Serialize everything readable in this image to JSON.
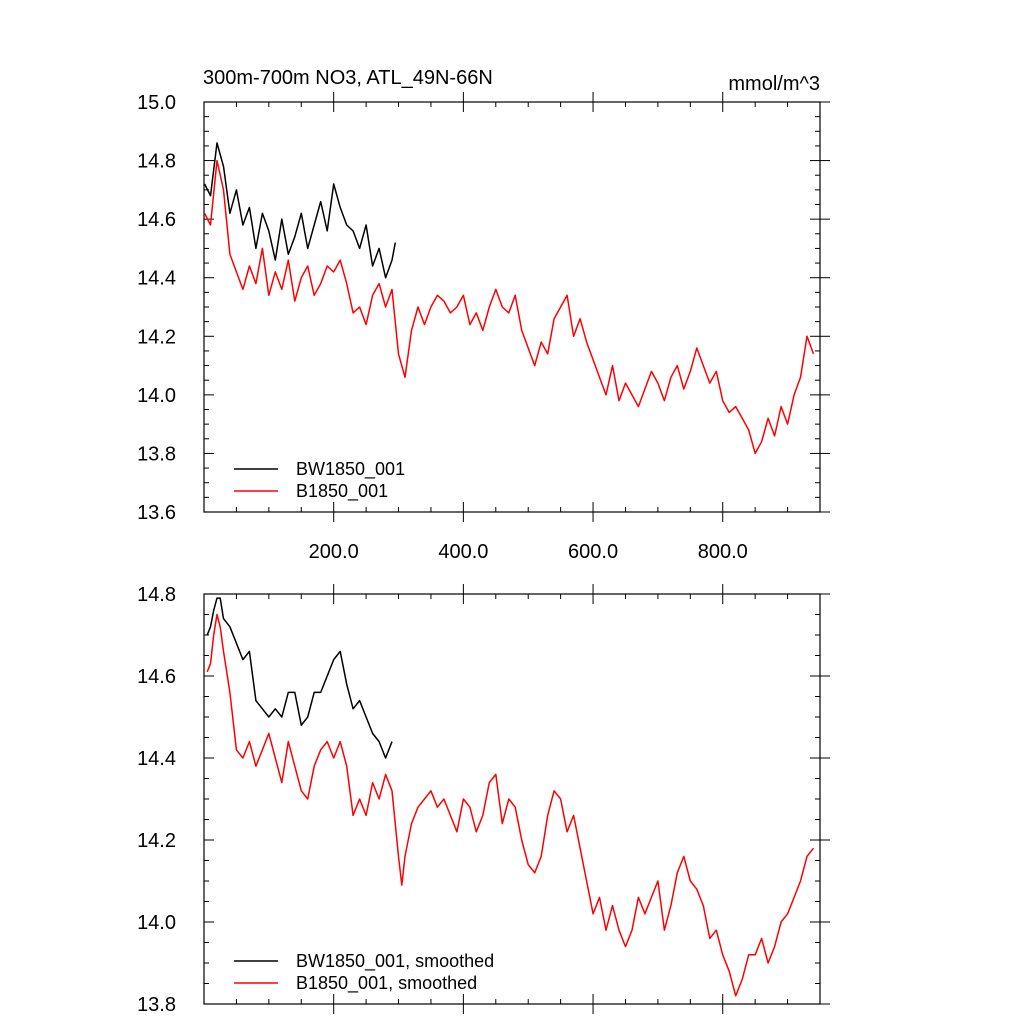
{
  "chart_data": [
    {
      "type": "line",
      "title": "300m-700m NO3, ATL_49N-66N",
      "units": "mmol/m^3",
      "xlim": [
        0,
        950
      ],
      "ylim": [
        13.6,
        15.0
      ],
      "x_ticks": [
        200,
        400,
        600,
        800
      ],
      "x_tick_labels": [
        "200.0",
        "400.0",
        "600.0",
        "800.0"
      ],
      "y_ticks": [
        13.6,
        13.8,
        14.0,
        14.2,
        14.4,
        14.6,
        14.8,
        15.0
      ],
      "y_tick_labels": [
        "13.6",
        "13.8",
        "14.0",
        "14.2",
        "14.4",
        "14.6",
        "14.8",
        "15.0"
      ],
      "grid": false,
      "legend_position": "bottom-left",
      "series": [
        {
          "name": "BW1850_001",
          "color": "#000000",
          "x": [
            1,
            10,
            20,
            30,
            40,
            50,
            60,
            70,
            80,
            90,
            100,
            110,
            120,
            130,
            140,
            150,
            160,
            170,
            180,
            190,
            200,
            210,
            220,
            230,
            240,
            250,
            260,
            270,
            280,
            290,
            295
          ],
          "y": [
            14.72,
            14.68,
            14.86,
            14.78,
            14.62,
            14.7,
            14.58,
            14.64,
            14.5,
            14.62,
            14.56,
            14.46,
            14.6,
            14.48,
            14.54,
            14.62,
            14.5,
            14.58,
            14.66,
            14.56,
            14.72,
            14.64,
            14.58,
            14.56,
            14.5,
            14.58,
            14.44,
            14.5,
            14.4,
            14.46,
            14.52
          ]
        },
        {
          "name": "B1850_001",
          "color": "#ff0000",
          "x": [
            1,
            10,
            20,
            30,
            40,
            50,
            60,
            70,
            80,
            90,
            100,
            110,
            120,
            130,
            140,
            150,
            160,
            170,
            180,
            190,
            200,
            210,
            220,
            230,
            240,
            250,
            260,
            270,
            280,
            290,
            300,
            310,
            320,
            330,
            340,
            350,
            360,
            370,
            380,
            390,
            400,
            410,
            420,
            430,
            440,
            450,
            460,
            470,
            480,
            490,
            500,
            510,
            520,
            530,
            540,
            550,
            560,
            570,
            580,
            590,
            600,
            610,
            620,
            630,
            640,
            650,
            660,
            670,
            680,
            690,
            700,
            710,
            720,
            730,
            740,
            750,
            760,
            770,
            780,
            790,
            800,
            810,
            820,
            830,
            840,
            850,
            860,
            870,
            880,
            890,
            900,
            910,
            920,
            930,
            940
          ],
          "y": [
            14.62,
            14.58,
            14.8,
            14.7,
            14.48,
            14.42,
            14.36,
            14.44,
            14.38,
            14.5,
            14.34,
            14.42,
            14.36,
            14.46,
            14.32,
            14.4,
            14.44,
            14.34,
            14.38,
            14.44,
            14.42,
            14.46,
            14.38,
            14.28,
            14.3,
            14.24,
            14.34,
            14.38,
            14.3,
            14.36,
            14.14,
            14.06,
            14.22,
            14.3,
            14.24,
            14.3,
            14.34,
            14.32,
            14.28,
            14.3,
            14.34,
            14.24,
            14.28,
            14.22,
            14.3,
            14.36,
            14.3,
            14.28,
            14.34,
            14.22,
            14.16,
            14.1,
            14.18,
            14.14,
            14.26,
            14.3,
            14.34,
            14.2,
            14.26,
            14.18,
            14.12,
            14.06,
            14.0,
            14.1,
            13.98,
            14.04,
            14.0,
            13.96,
            14.02,
            14.08,
            14.04,
            13.98,
            14.06,
            14.1,
            14.02,
            14.08,
            14.16,
            14.1,
            14.04,
            14.08,
            13.98,
            13.94,
            13.96,
            13.92,
            13.88,
            13.8,
            13.84,
            13.92,
            13.86,
            13.96,
            13.9,
            14.0,
            14.06,
            14.2,
            14.14
          ]
        }
      ]
    },
    {
      "type": "line",
      "xlim": [
        0,
        950
      ],
      "ylim": [
        13.8,
        14.8
      ],
      "x_ticks": [
        200,
        400,
        600,
        800
      ],
      "x_tick_labels": [],
      "y_ticks": [
        13.8,
        14.0,
        14.2,
        14.4,
        14.6,
        14.8
      ],
      "y_tick_labels": [
        "13.8",
        "14.0",
        "14.2",
        "14.4",
        "14.6",
        "14.8"
      ],
      "grid": false,
      "legend_position": "bottom-left",
      "series": [
        {
          "name": "BW1850_001, smoothed",
          "color": "#000000",
          "x": [
            5,
            10,
            15,
            20,
            25,
            30,
            40,
            50,
            60,
            70,
            80,
            90,
            100,
            110,
            120,
            130,
            140,
            150,
            160,
            170,
            180,
            190,
            200,
            210,
            220,
            230,
            240,
            250,
            260,
            270,
            280,
            290
          ],
          "y": [
            14.7,
            14.72,
            14.76,
            14.79,
            14.79,
            14.74,
            14.72,
            14.68,
            14.64,
            14.66,
            14.54,
            14.52,
            14.5,
            14.52,
            14.5,
            14.56,
            14.56,
            14.48,
            14.5,
            14.56,
            14.56,
            14.6,
            14.64,
            14.66,
            14.58,
            14.52,
            14.54,
            14.5,
            14.46,
            14.44,
            14.4,
            14.44
          ]
        },
        {
          "name": "B1850_001, smoothed",
          "color": "#ff0000",
          "x": [
            5,
            10,
            15,
            20,
            25,
            30,
            40,
            50,
            60,
            70,
            80,
            90,
            100,
            110,
            120,
            130,
            140,
            150,
            160,
            170,
            180,
            190,
            200,
            210,
            220,
            230,
            240,
            250,
            260,
            270,
            280,
            290,
            300,
            305,
            310,
            320,
            330,
            340,
            350,
            360,
            370,
            380,
            390,
            400,
            410,
            420,
            430,
            440,
            450,
            460,
            470,
            480,
            490,
            500,
            510,
            520,
            530,
            540,
            550,
            560,
            570,
            580,
            590,
            600,
            610,
            620,
            630,
            640,
            650,
            660,
            670,
            680,
            690,
            700,
            710,
            720,
            730,
            740,
            750,
            760,
            770,
            780,
            790,
            800,
            810,
            820,
            830,
            840,
            850,
            860,
            870,
            880,
            890,
            900,
            910,
            920,
            930,
            940
          ],
          "y": [
            14.61,
            14.63,
            14.7,
            14.75,
            14.72,
            14.66,
            14.56,
            14.42,
            14.4,
            14.44,
            14.38,
            14.42,
            14.46,
            14.4,
            14.34,
            14.44,
            14.38,
            14.32,
            14.3,
            14.38,
            14.42,
            14.44,
            14.4,
            14.44,
            14.38,
            14.26,
            14.3,
            14.26,
            14.34,
            14.3,
            14.36,
            14.32,
            14.16,
            14.09,
            14.16,
            14.24,
            14.28,
            14.3,
            14.32,
            14.28,
            14.3,
            14.26,
            14.22,
            14.3,
            14.28,
            14.22,
            14.26,
            14.34,
            14.36,
            14.24,
            14.3,
            14.28,
            14.2,
            14.14,
            14.12,
            14.16,
            14.26,
            14.32,
            14.3,
            14.22,
            14.26,
            14.18,
            14.1,
            14.02,
            14.06,
            13.98,
            14.04,
            13.98,
            13.94,
            13.98,
            14.06,
            14.02,
            14.06,
            14.1,
            13.98,
            14.04,
            14.12,
            14.16,
            14.1,
            14.08,
            14.04,
            13.96,
            13.98,
            13.92,
            13.88,
            13.82,
            13.86,
            13.92,
            13.92,
            13.96,
            13.9,
            13.94,
            14.0,
            14.02,
            14.06,
            14.1,
            14.16,
            14.18
          ]
        }
      ]
    }
  ]
}
